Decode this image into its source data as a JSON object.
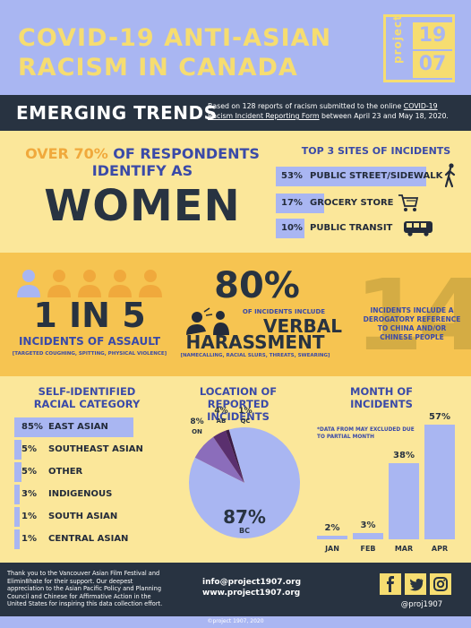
{
  "header": {
    "title_line1": "COVID-19 ANTI-ASIAN",
    "title_line2": "RACISM IN CANADA",
    "logo_word": "project",
    "logo_year_top": "19",
    "logo_year_bottom": "07"
  },
  "trends": {
    "title": "EMERGING TRENDS",
    "note_before": "Based on 128 reports of racism submitted to the online ",
    "note_link": "COVID-19 Racism Incident Reporting Form",
    "note_after": " between April 23 and May 18, 2020."
  },
  "women": {
    "pct": "OVER 70%",
    "rest1": " OF RESPONDENTS",
    "line2": "IDENTIFY AS",
    "big": "WOMEN"
  },
  "top_sites": {
    "title": "TOP 3 SITES OF INCIDENTS",
    "items": [
      {
        "pct": "53%",
        "label": "PUBLIC STREET/SIDEWALK",
        "value": 53,
        "icon": "walking-person-icon"
      },
      {
        "pct": "17%",
        "label": "GROCERY STORE",
        "value": 17,
        "icon": "shopping-cart-icon"
      },
      {
        "pct": "10%",
        "label": "PUBLIC TRANSIT",
        "value": 10,
        "icon": "bus-icon"
      }
    ]
  },
  "assault": {
    "big": "1 IN 5",
    "label": "INCIDENTS OF ASSAULT",
    "sub": "[TARGETED COUGHING, SPITTING, PHYSICAL VIOLENCE]"
  },
  "verbal": {
    "big": "80%",
    "sub": "OF INCIDENTS INCLUDE",
    "word1": "VERBAL",
    "word2": "HARASSMENT",
    "detail": "[NAMECALLING, RACIAL SLURS, THREATS, SWEARING]"
  },
  "china": {
    "big": "14",
    "text": "INCIDENTS INCLUDE A DEROGATORY REFERENCE TO CHINA AND/OR CHINESE PEOPLE"
  },
  "racial": {
    "title_line1": "SELF-IDENTIFIED",
    "title_line2": "RACIAL CATEGORY",
    "items": [
      {
        "pct": "85%",
        "label": "EAST ASIAN",
        "value": 85
      },
      {
        "pct": "5%",
        "label": "SOUTHEAST ASIAN",
        "value": 5
      },
      {
        "pct": "5%",
        "label": "OTHER",
        "value": 5
      },
      {
        "pct": "3%",
        "label": "INDIGENOUS",
        "value": 3
      },
      {
        "pct": "1%",
        "label": "SOUTH ASIAN",
        "value": 1
      },
      {
        "pct": "1%",
        "label": "CENTRAL ASIAN",
        "value": 1
      }
    ]
  },
  "location": {
    "title_line1": "LOCATION OF",
    "title_line2": "REPORTED INCIDENTS",
    "slices": [
      {
        "pct": "87%",
        "label": "BC",
        "value": 87,
        "color": "#a9b6f2"
      },
      {
        "pct": "8%",
        "label": "ON",
        "value": 8,
        "color": "#8b6dbb"
      },
      {
        "pct": "4%",
        "label": "AB",
        "value": 4,
        "color": "#5a2f6e"
      },
      {
        "pct": "1%",
        "label": "QC",
        "value": 1,
        "color": "#3a1a45"
      }
    ]
  },
  "month": {
    "title_line1": "MONTH OF",
    "title_line2": "INCIDENTS",
    "note": "*DATA FROM MAY EXCLUDED DUE TO PARTIAL MONTH",
    "items": [
      {
        "label": "JAN",
        "pct": "2%",
        "value": 2
      },
      {
        "label": "FEB",
        "pct": "3%",
        "value": 3
      },
      {
        "label": "MAR",
        "pct": "38%",
        "value": 38
      },
      {
        "label": "APR",
        "pct": "57%",
        "value": 57
      }
    ]
  },
  "footer": {
    "thanks": "Thank you to the Vancouver Asian Film Festival and Elimin8hate for their support. Our deepest appreciation to the Asian Pacific Policy and Planning Council and Chinese for Affirmative Action in the United States for inspiring this data collection effort.",
    "email": "info@project1907.org",
    "website": "www.project1907.org",
    "handle": "@proj1907",
    "copyright": "©project 1907, 2020"
  },
  "colors": {
    "periwinkle": "#a9b6f2",
    "navy": "#283341",
    "yellow": "#f6dd71",
    "pale_yellow": "#fbe79a",
    "mustard": "#f6c451",
    "blue_text": "#3a4aa8",
    "orange": "#f0a93c"
  }
}
